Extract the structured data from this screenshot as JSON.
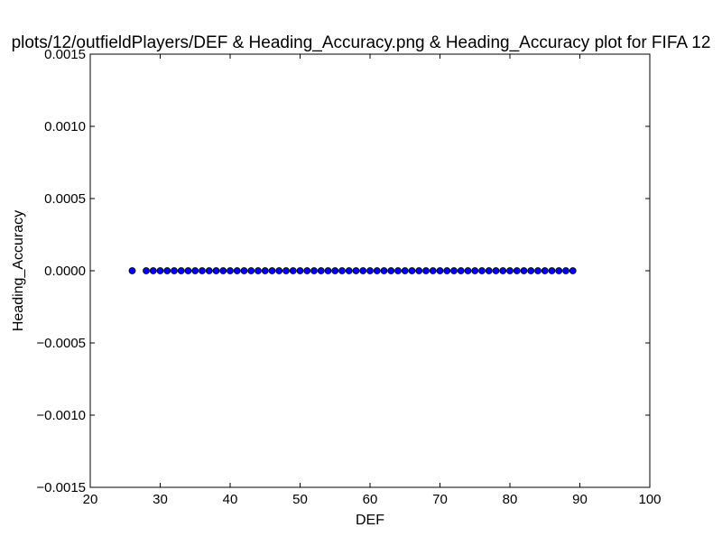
{
  "chart_data": {
    "type": "scatter",
    "title": "plots/12/outfieldPlayers/DEF & Heading_Accuracy.png & Heading_Accuracy plot for FIFA 12",
    "xlabel": "DEF",
    "ylabel": "Heading_Accuracy",
    "xlim": [
      20,
      100
    ],
    "ylim": [
      -0.0015,
      0.0015
    ],
    "x_ticks": [
      20,
      30,
      40,
      50,
      60,
      70,
      80,
      90,
      100
    ],
    "x_tick_labels": [
      "20",
      "30",
      "40",
      "50",
      "60",
      "70",
      "80",
      "90",
      "100"
    ],
    "y_ticks": [
      0.0015,
      0.001,
      0.0005,
      0,
      -0.0005,
      -0.001,
      -0.0015
    ],
    "y_tick_labels": [
      "0.0015",
      "0.0010",
      "0.0005",
      "0.0000",
      "−0.0005",
      "−0.0010",
      "−0.0015"
    ],
    "grid": false,
    "legend": "none",
    "marker_color": "#0000ff",
    "x": [
      26,
      28,
      29,
      30,
      31,
      32,
      33,
      34,
      35,
      36,
      37,
      38,
      39,
      40,
      41,
      42,
      43,
      44,
      45,
      46,
      47,
      48,
      49,
      50,
      51,
      52,
      53,
      54,
      55,
      56,
      57,
      58,
      59,
      60,
      61,
      62,
      63,
      64,
      65,
      66,
      67,
      68,
      69,
      70,
      71,
      72,
      73,
      74,
      75,
      76,
      77,
      78,
      79,
      80,
      81,
      82,
      83,
      84,
      85,
      86,
      87,
      88,
      89
    ],
    "y": [
      0,
      0,
      0,
      0,
      0,
      0,
      0,
      0,
      0,
      0,
      0,
      0,
      0,
      0,
      0,
      0,
      0,
      0,
      0,
      0,
      0,
      0,
      0,
      0,
      0,
      0,
      0,
      0,
      0,
      0,
      0,
      0,
      0,
      0,
      0,
      0,
      0,
      0,
      0,
      0,
      0,
      0,
      0,
      0,
      0,
      0,
      0,
      0,
      0,
      0,
      0,
      0,
      0,
      0,
      0,
      0,
      0,
      0,
      0,
      0,
      0,
      0,
      0
    ]
  }
}
